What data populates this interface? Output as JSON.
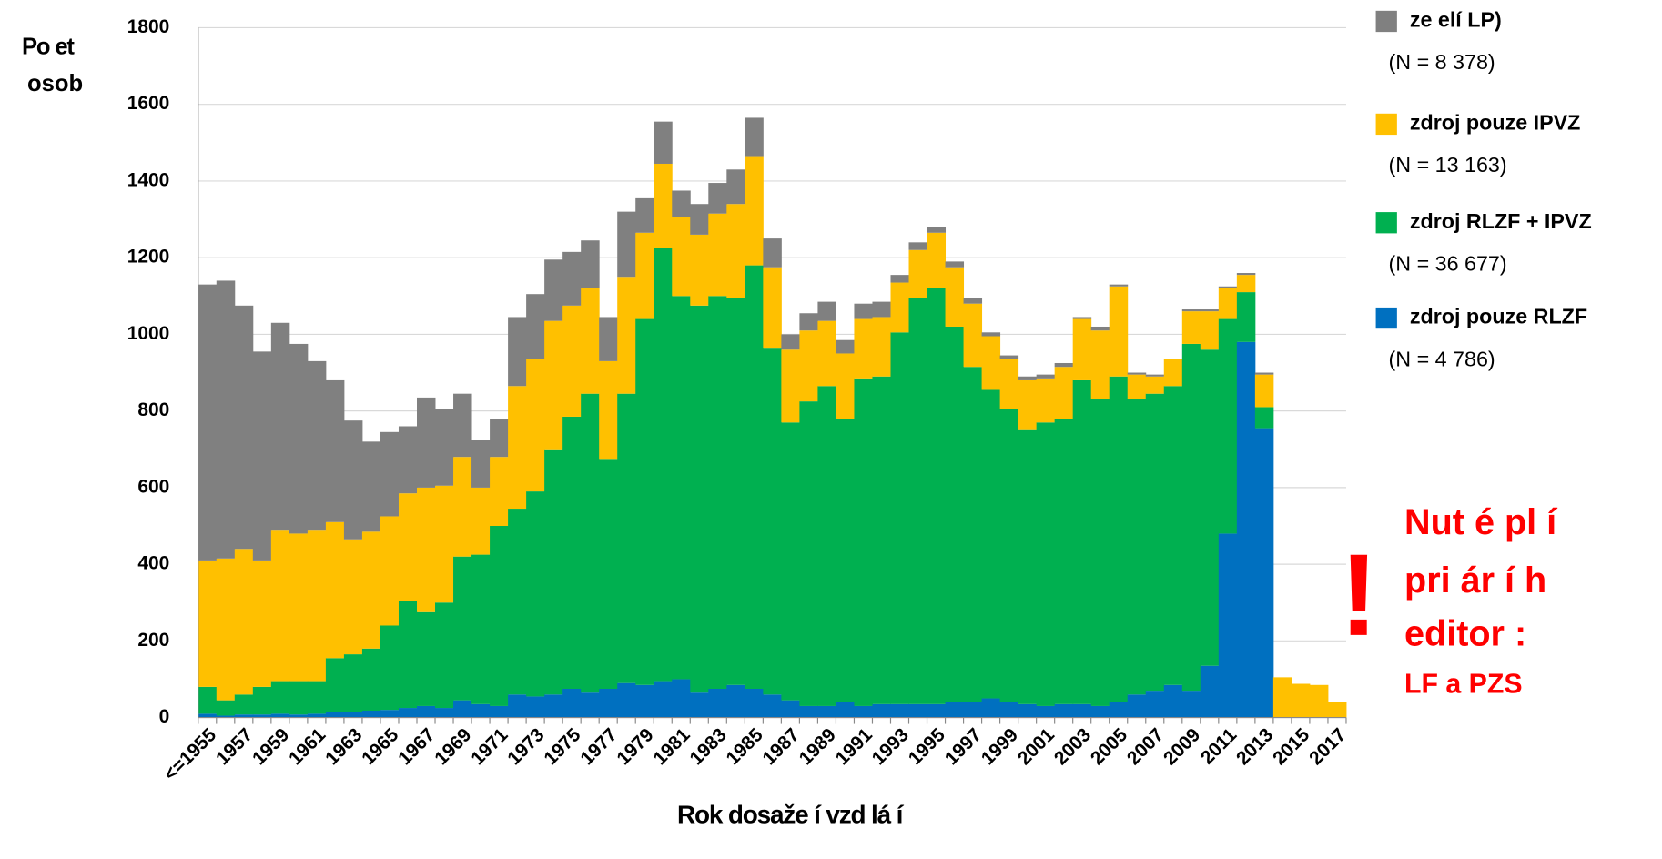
{
  "chart_data": {
    "type": "stacked-bar",
    "ylabel": [
      "Po et",
      "osob"
    ],
    "xlabel": "Rok dosaže í vzd lá í",
    "categories": [
      "<=1955",
      null,
      "1957",
      null,
      "1959",
      null,
      "1961",
      null,
      "1963",
      null,
      "1965",
      null,
      "1967",
      null,
      "1969",
      null,
      "1971",
      null,
      "1973",
      null,
      "1975",
      null,
      "1977",
      null,
      "1979",
      null,
      "1981",
      null,
      "1983",
      null,
      "1985",
      null,
      "1987",
      null,
      "1989",
      null,
      "1991",
      null,
      "1993",
      null,
      "1995",
      null,
      "1997",
      null,
      "1999",
      null,
      "2001",
      null,
      "2003",
      null,
      "2005",
      null,
      "2007",
      null,
      "2009",
      null,
      "2011",
      null,
      "2013",
      null,
      "2015",
      null,
      "2017"
    ],
    "series": [
      {
        "name": "zdroj pouze RLZF",
        "note": "(N = 4 786)",
        "color": "#0070c0",
        "values": [
          10,
          5,
          8,
          8,
          10,
          8,
          10,
          15,
          15,
          18,
          20,
          25,
          30,
          25,
          45,
          35,
          30,
          60,
          55,
          60,
          75,
          65,
          75,
          90,
          85,
          95,
          100,
          65,
          75,
          85,
          75,
          60,
          45,
          30,
          30,
          40,
          30,
          35,
          35,
          35,
          35,
          40,
          40,
          50,
          40,
          35,
          30,
          35,
          35,
          30,
          40,
          60,
          70,
          85,
          70,
          135,
          480,
          980,
          755,
          0,
          0,
          0,
          0
        ]
      },
      {
        "name": "zdroj RLZF + IPVZ",
        "note": "(N = 36 677)",
        "color": "#00b050",
        "values": [
          70,
          40,
          52,
          72,
          85,
          87,
          85,
          140,
          150,
          162,
          220,
          280,
          245,
          275,
          375,
          390,
          470,
          485,
          535,
          640,
          710,
          780,
          600,
          755,
          955,
          1130,
          1000,
          1010,
          1025,
          1010,
          1105,
          905,
          725,
          795,
          835,
          740,
          855,
          855,
          970,
          1060,
          1085,
          980,
          875,
          805,
          765,
          715,
          740,
          745,
          845,
          800,
          850,
          770,
          775,
          780,
          905,
          825,
          560,
          130,
          55,
          0,
          0,
          0,
          0
        ]
      },
      {
        "name": "zdroj pouze IPVZ",
        "note": "(N = 13 163)",
        "color": "#ffc000",
        "values": [
          330,
          370,
          380,
          330,
          395,
          385,
          395,
          355,
          300,
          305,
          285,
          280,
          325,
          305,
          260,
          175,
          180,
          320,
          345,
          335,
          290,
          275,
          255,
          305,
          225,
          220,
          205,
          185,
          215,
          245,
          285,
          210,
          190,
          185,
          170,
          170,
          155,
          155,
          130,
          125,
          145,
          155,
          165,
          140,
          130,
          130,
          115,
          135,
          160,
          180,
          235,
          65,
          45,
          70,
          85,
          100,
          80,
          45,
          85,
          105,
          88,
          85,
          40
        ]
      },
      {
        "name": "ze   elí LP)",
        "note": "(N = 8 378)",
        "color": "#808080",
        "values": [
          720,
          725,
          635,
          545,
          540,
          495,
          440,
          370,
          310,
          235,
          220,
          175,
          235,
          200,
          165,
          125,
          100,
          180,
          170,
          160,
          140,
          125,
          115,
          170,
          90,
          110,
          70,
          80,
          80,
          90,
          100,
          75,
          40,
          45,
          50,
          35,
          40,
          40,
          20,
          20,
          15,
          15,
          15,
          10,
          10,
          10,
          10,
          10,
          5,
          10,
          5,
          5,
          5,
          0,
          5,
          5,
          5,
          5,
          5,
          0,
          0,
          0,
          0
        ]
      }
    ],
    "ylim": [
      0,
      1800
    ],
    "yticks": [
      0,
      200,
      400,
      600,
      800,
      1000,
      1200,
      1400,
      1600,
      1800
    ],
    "grid": true,
    "annotation": {
      "mark": "!",
      "lines": [
        "Nut é pl í",
        "pri ár í h",
        "editor :"
      ],
      "sub": "LF a PZS"
    }
  }
}
